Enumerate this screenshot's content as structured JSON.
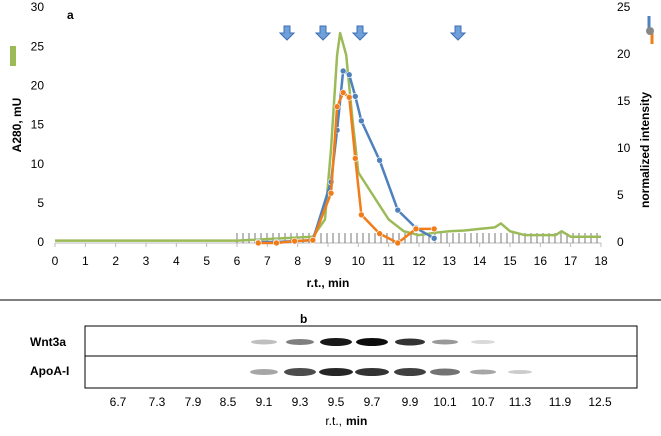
{
  "chart_data": {
    "type": "line",
    "panel_label": "a",
    "xlabel": "r.t., min",
    "ylabel": "A280, mU",
    "y2label": "normalized intensity",
    "xlim": [
      0,
      18
    ],
    "xticks": [
      0,
      1,
      2,
      3,
      4,
      5,
      6,
      7,
      8,
      9,
      10,
      11,
      12,
      13,
      14,
      15,
      16,
      17,
      18
    ],
    "ylim": [
      0,
      30
    ],
    "yticks": [
      0,
      5,
      10,
      15,
      20,
      25,
      30
    ],
    "y2lim": [
      0,
      25
    ],
    "y2ticks": [
      0,
      5,
      10,
      15,
      20,
      25
    ],
    "series": [
      {
        "color": "#9bbb59",
        "x": [
          0,
          6,
          8.5,
          8.9,
          9.1,
          9.3,
          9.4,
          9.6,
          9.8,
          10,
          10.5,
          11,
          11.5,
          12,
          12.5,
          13,
          13.5,
          14,
          14.5,
          14.7,
          15,
          15.5,
          16,
          16.5,
          16.7,
          17,
          17.5,
          18
        ],
        "values": [
          0.3,
          0.3,
          0.8,
          3,
          12,
          24,
          26.8,
          24,
          16,
          9,
          6,
          3,
          1.5,
          1,
          1.3,
          1.5,
          1.6,
          1.8,
          2,
          2.5,
          1.5,
          1,
          1,
          1,
          1.5,
          0.8,
          0.8,
          0.8
        ]
      },
      {
        "color": "#4f81bd",
        "axis": "y2",
        "x": [
          6.7,
          7.3,
          7.9,
          8.5,
          9.1,
          9.3,
          9.5,
          9.7,
          9.9,
          10.1,
          10.7,
          11.3,
          11.9,
          12.5
        ],
        "values": [
          0.1,
          0.1,
          0.2,
          0.3,
          6.5,
          12,
          18.3,
          17.9,
          15.6,
          13,
          8.8,
          3.5,
          1.6,
          0.5
        ]
      },
      {
        "color": "#f07d1a",
        "axis": "y2",
        "x": [
          6.7,
          7.3,
          7.9,
          8.5,
          9.1,
          9.3,
          9.5,
          9.7,
          9.9,
          10.1,
          10.7,
          11.3,
          11.9,
          12.5
        ],
        "values": [
          0,
          0,
          0.2,
          0.3,
          5.3,
          14.5,
          16,
          15.5,
          9,
          3,
          1,
          0,
          1.5,
          1.5
        ]
      }
    ]
  },
  "blot": {
    "panel_label": "b",
    "rows": [
      "Wnt3a",
      "ApoA-I"
    ],
    "lanes": [
      "6.7",
      "7.3",
      "7.9",
      "8.5",
      "9.1",
      "9.3",
      "9.5",
      "9.7",
      "9.9",
      "10.1",
      "10.7",
      "11.3",
      "11.9",
      "12.5"
    ],
    "xlabel": [
      "r.t.,",
      "min"
    ]
  }
}
